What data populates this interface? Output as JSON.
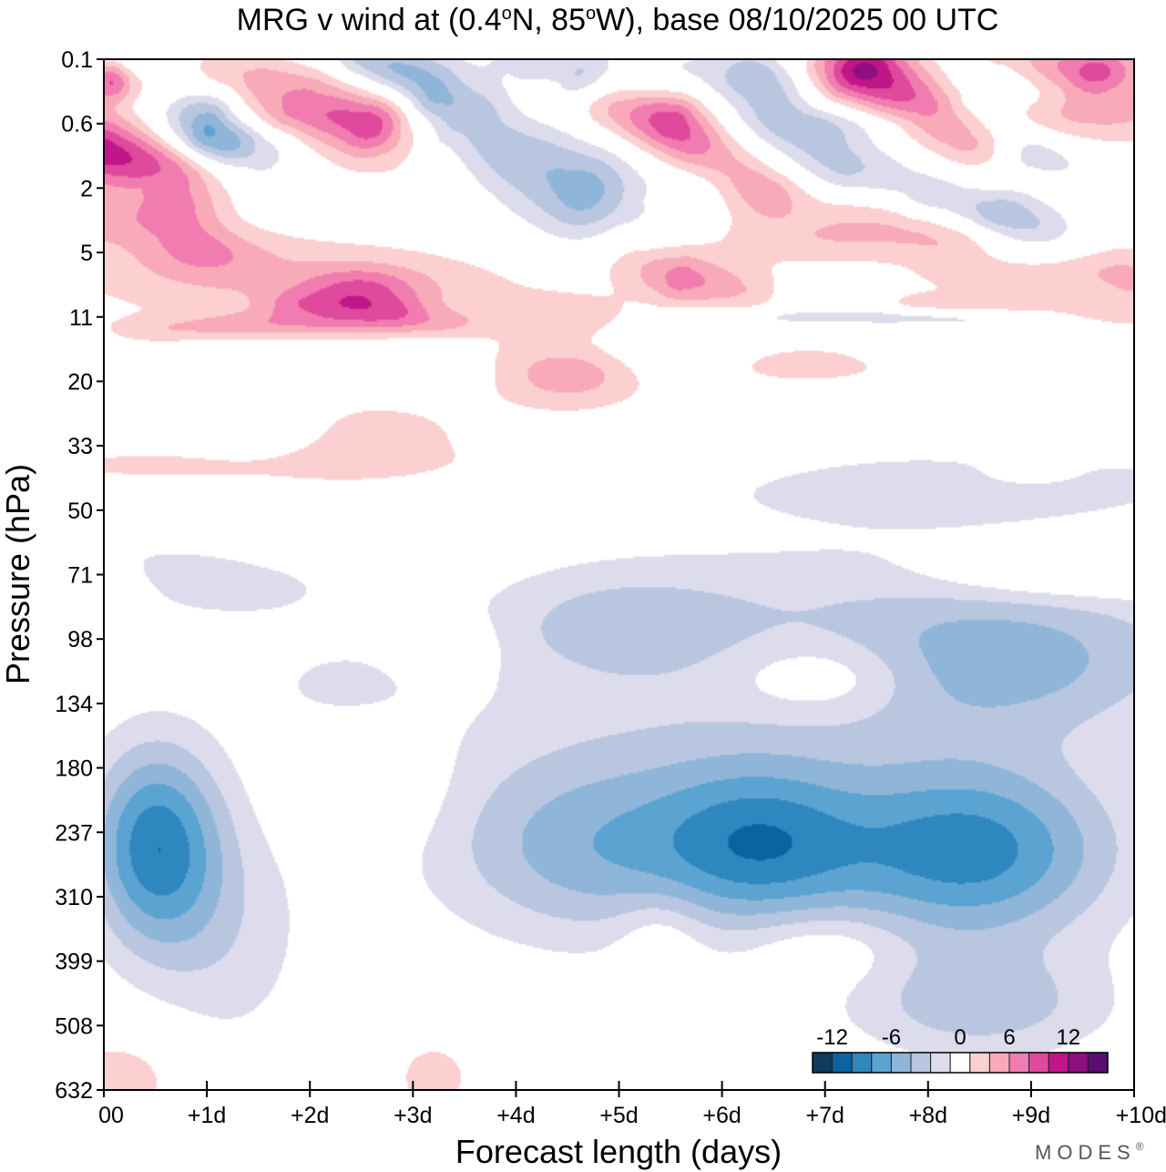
{
  "chart_data": {
    "type": "heatmap",
    "title": "MRG v wind at (0.4°N, 85°W),  base 08/10/2025  00 UTC",
    "title_parts": {
      "prefix": "MRG v wind at (0.4",
      "deg1": "o",
      "mid": "N, 85",
      "deg2": "o",
      "suffix": "W),  base 08/10/2025  00 UTC"
    },
    "xlabel": "Forecast length (days)",
    "ylabel": "Pressure (hPa)",
    "x_range": [
      0,
      10
    ],
    "x_ticks": [
      {
        "value": 0,
        "label": "00"
      },
      {
        "value": 1,
        "label": "+1d"
      },
      {
        "value": 2,
        "label": "+2d"
      },
      {
        "value": 3,
        "label": "+3d"
      },
      {
        "value": 4,
        "label": "+4d"
      },
      {
        "value": 5,
        "label": "+5d"
      },
      {
        "value": 6,
        "label": "+6d"
      },
      {
        "value": 7,
        "label": "+7d"
      },
      {
        "value": 8,
        "label": "+8d"
      },
      {
        "value": 9,
        "label": "+9d"
      },
      {
        "value": 10,
        "label": "+10d"
      }
    ],
    "y_ticks": [
      "0.1",
      "0.6",
      "2",
      "5",
      "11",
      "20",
      "33",
      "50",
      "71",
      "98",
      "134",
      "180",
      "237",
      "310",
      "399",
      "508",
      "632"
    ],
    "colorbar": {
      "levels": [
        -15,
        -12,
        -10,
        -8,
        -6,
        -4,
        -2,
        2,
        4,
        6,
        8,
        10,
        12,
        14,
        16
      ],
      "colors": [
        "#0f3b5c",
        "#0b64a0",
        "#2f87c0",
        "#5ba3d1",
        "#8fb5d9",
        "#b8c6e0",
        "#dcdcec",
        "#ffffff",
        "#fcd0d0",
        "#f8aab8",
        "#f07cb0",
        "#e04a9c",
        "#c0168a",
        "#8e0f80",
        "#5a0f70"
      ],
      "labels": [
        {
          "value": -12,
          "text": "-12"
        },
        {
          "value": -6,
          "text": "-6"
        },
        {
          "value": 0,
          "text": "0"
        },
        {
          "value": 6,
          "text": "6"
        },
        {
          "value": 12,
          "text": "12"
        }
      ]
    },
    "features": [
      {
        "day": 0.5,
        "level": 12.2,
        "sd": 0.45,
        "sl": 1.1,
        "amp": -11
      },
      {
        "day": 1.2,
        "level": 13.6,
        "sd": 0.6,
        "sl": 1.4,
        "amp": -3
      },
      {
        "day": 4.8,
        "level": 12.3,
        "sd": 1.1,
        "sl": 1.0,
        "amp": -7
      },
      {
        "day": 6.4,
        "level": 12.2,
        "sd": 0.7,
        "sl": 0.9,
        "amp": -8
      },
      {
        "day": 8.4,
        "level": 12.3,
        "sd": 1.0,
        "sl": 1.0,
        "amp": -11
      },
      {
        "day": 5.6,
        "level": 10.5,
        "sd": 2.0,
        "sl": 1.0,
        "amp": -2.5
      },
      {
        "day": 8.8,
        "level": 9.4,
        "sd": 1.3,
        "sl": 0.8,
        "amp": -6
      },
      {
        "day": 5.0,
        "level": 8.8,
        "sd": 0.9,
        "sl": 0.6,
        "amp": -4
      },
      {
        "day": 7.5,
        "level": 8.3,
        "sd": 2.2,
        "sl": 0.8,
        "amp": -2.5
      },
      {
        "day": 2.3,
        "level": 9.7,
        "sd": 0.5,
        "sl": 0.4,
        "amp": -2.3
      },
      {
        "day": 1.3,
        "level": 8.3,
        "sd": 0.9,
        "sl": 0.4,
        "amp": -2.3
      },
      {
        "day": 8.5,
        "level": 14.7,
        "sd": 0.9,
        "sl": 0.6,
        "amp": -5
      },
      {
        "day": 2.5,
        "level": 11.3,
        "sd": 0.5,
        "sl": 0.6,
        "amp": 3
      },
      {
        "day": 5.4,
        "level": 13.6,
        "sd": 0.3,
        "sl": 0.5,
        "amp": 2.5
      },
      {
        "day": 7.0,
        "level": 13.8,
        "sd": 0.5,
        "sl": 0.4,
        "amp": 2.5
      },
      {
        "day": 0.2,
        "level": 15.8,
        "sd": 0.5,
        "sl": 0.6,
        "amp": 3
      },
      {
        "day": 3.2,
        "level": 15.8,
        "sd": 0.4,
        "sl": 0.6,
        "amp": 2.5
      },
      {
        "day": 0.1,
        "level": 8.4,
        "sd": 0.2,
        "sl": 0.5,
        "amp": 2.5
      },
      {
        "day": 0.5,
        "level": 9.7,
        "sd": 0.1,
        "sl": 0.1,
        "amp": 2.5
      },
      {
        "day": 7.0,
        "level": 9.6,
        "sd": 0.6,
        "sl": 0.4,
        "amp": 3.5
      },
      {
        "day": 3.3,
        "level": 9.1,
        "sd": 0.3,
        "sl": 0.3,
        "amp": 3
      },
      {
        "day": 2.0,
        "level": 7.5,
        "sd": 0.8,
        "sl": 0.4,
        "amp": 2.5
      },
      {
        "day": 9.3,
        "level": 8.0,
        "sd": 1.0,
        "sl": 0.3,
        "amp": 3.5
      },
      {
        "day": 1.0,
        "level": 7.8,
        "sd": 1.2,
        "sl": 0.3,
        "amp": -2.3
      },
      {
        "day": 7.9,
        "level": 6.7,
        "sd": 1.8,
        "sl": 0.4,
        "amp": -2.3
      },
      {
        "day": 9.0,
        "level": 6.5,
        "sd": 1.2,
        "sl": 0.3,
        "amp": -2.3
      },
      {
        "day": 8.9,
        "level": 6.5,
        "sd": 0.6,
        "sl": 0.2,
        "amp": 2.5
      },
      {
        "day": 2.5,
        "level": 5.8,
        "sd": 0.7,
        "sl": 0.4,
        "amp": 3.5
      },
      {
        "day": 1.6,
        "level": 5.7,
        "sd": 0.5,
        "sl": 0.4,
        "amp": -2.5
      },
      {
        "day": 1.0,
        "level": 6.3,
        "sd": 2.0,
        "sl": 0.25,
        "amp": 2.5
      },
      {
        "day": 4.5,
        "level": 4.9,
        "sd": 0.6,
        "sl": 0.4,
        "amp": 5
      },
      {
        "day": 3.0,
        "level": 4.9,
        "sd": 0.5,
        "sl": 0.25,
        "amp": -2.3
      },
      {
        "day": 6.8,
        "level": 4.7,
        "sd": 1.1,
        "sl": 0.3,
        "amp": 3
      },
      {
        "day": 4.6,
        "level": 4.0,
        "sd": 0.5,
        "sl": 0.25,
        "amp": 3
      },
      {
        "day": 5.5,
        "level": 4.7,
        "sd": 0.4,
        "sl": 0.3,
        "amp": -2.3
      },
      {
        "day": 8.8,
        "level": 3.4,
        "sd": 0.7,
        "sl": 0.25,
        "amp": 3
      },
      {
        "day": 0.9,
        "level": 3.3,
        "sd": 1.2,
        "sl": 0.5,
        "amp": 3
      },
      {
        "day": 2.8,
        "level": 3.6,
        "sd": 1.2,
        "sl": 0.5,
        "amp": 3
      },
      {
        "day": 5.5,
        "level": 4.3,
        "sd": 0.7,
        "sl": 0.3,
        "amp": -2.3
      },
      {
        "day": 8.5,
        "level": 4.5,
        "sd": 0.8,
        "sl": 0.25,
        "amp": -2.3
      },
      {
        "day": 7.0,
        "level": 2.8,
        "sd": 0.8,
        "sl": 0.3,
        "amp": 3.5
      },
      {
        "day": 2.5,
        "level": 3.6,
        "sd": 0.4,
        "sl": 0.25,
        "amp": 5
      },
      {
        "day": 1.0,
        "level": 3.0,
        "sd": 0.4,
        "sl": 0.25,
        "amp": 3
      },
      {
        "day": 0.4,
        "level": 1.8,
        "sd": 0.6,
        "sl": 0.4,
        "amp": 2.8
      },
      {
        "day": 4.0,
        "level": 1.9,
        "sd": 1.0,
        "sl": 0.4,
        "amp": 2.5
      },
      {
        "day": 1.0,
        "level": 1.4,
        "sd": 0.3,
        "sl": 0.2,
        "amp": -2.3
      },
      {
        "day": 9.5,
        "level": 1.1,
        "sd": 0.9,
        "sl": 0.3,
        "amp": 2.5
      },
      {
        "day": 9.6,
        "level": 0.8,
        "sd": 0.5,
        "sl": 0.2,
        "amp": 2.5
      },
      {
        "day": 8.5,
        "level": 0.3,
        "sd": 0.9,
        "sl": 0.3,
        "amp": -2.5
      },
      {
        "day": 5.5,
        "level": 0.2,
        "sd": 0.6,
        "sl": 0.3,
        "amp": -2.3
      },
      {
        "day": 3.0,
        "level": 0.1,
        "sd": 0.4,
        "sl": 0.2,
        "amp": -2.3
      },
      {
        "day": 2.0,
        "level": 0.3,
        "sd": 0.8,
        "sl": 0.3,
        "amp": 2.5
      },
      {
        "day": 1.0,
        "level": 0.9,
        "sd": 0.9,
        "sl": 0.2,
        "amp": 2.5
      },
      {
        "day": 6.0,
        "level": 1.9,
        "sd": 0.6,
        "sl": 0.3,
        "amp": -2.3
      },
      {
        "day": 7.2,
        "level": 1.0,
        "sd": 0.6,
        "sl": 0.2,
        "amp": -2.3
      },
      {
        "day": 0.1,
        "level": 0.3,
        "sd": 0.1,
        "sl": 0.2,
        "amp": 4
      }
    ],
    "ridges": [
      {
        "pts": [
          [
            0.2,
            0.4,
            -4
          ],
          [
            1.0,
            1.0,
            -11
          ],
          [
            1.5,
            1.4,
            -4
          ]
        ],
        "sd": 0.25,
        "sl": 0.35
      },
      {
        "pts": [
          [
            2.0,
            0.3,
            -3
          ],
          [
            3.2,
            1.2,
            -6
          ],
          [
            4.6,
            2.0,
            -9
          ],
          [
            5.0,
            2.4,
            -3
          ]
        ],
        "sd": 0.4,
        "sl": 0.5
      },
      {
        "pts": [
          [
            2.5,
            0.0,
            -4
          ],
          [
            3.2,
            0.5,
            -6
          ],
          [
            3.6,
            0.7,
            -3
          ]
        ],
        "sd": 0.2,
        "sl": 0.3
      },
      {
        "pts": [
          [
            4.0,
            0.0,
            -2.3
          ],
          [
            4.6,
            0.3,
            -7
          ],
          [
            5.0,
            0.5,
            -2.5
          ]
        ],
        "sd": 0.25,
        "sl": 0.3
      },
      {
        "pts": [
          [
            6.4,
            0.3,
            -6
          ],
          [
            6.6,
            1.0,
            -4
          ],
          [
            7.2,
            1.7,
            -5
          ],
          [
            7.8,
            2.0,
            -3
          ]
        ],
        "sd": 0.3,
        "sl": 0.4
      },
      {
        "pts": [
          [
            8.4,
            0.8,
            -3
          ],
          [
            9.0,
            1.4,
            -5
          ],
          [
            9.4,
            1.6,
            -2.5
          ]
        ],
        "sd": 0.2,
        "sl": 0.25
      },
      {
        "pts": [
          [
            8.2,
            2.2,
            -3
          ],
          [
            8.7,
            2.4,
            -6
          ],
          [
            9.4,
            2.8,
            -3
          ]
        ],
        "sd": 0.3,
        "sl": 0.25
      },
      {
        "pts": [
          [
            0.0,
            0.4,
            8
          ],
          [
            0.5,
            0.5,
            6
          ]
        ],
        "sd": 0.25,
        "sl": 0.25
      },
      {
        "pts": [
          [
            0.0,
            1.4,
            10
          ],
          [
            0.6,
            1.6,
            6
          ],
          [
            0.7,
            2.1,
            4
          ]
        ],
        "sd": 0.3,
        "sl": 0.35
      },
      {
        "pts": [
          [
            0.0,
            2.5,
            4
          ],
          [
            0.8,
            2.6,
            3
          ]
        ],
        "sd": 0.3,
        "sl": 0.3
      },
      {
        "pts": [
          [
            1.3,
            0.2,
            3
          ],
          [
            2.0,
            0.7,
            8
          ],
          [
            2.6,
            1.0,
            13
          ],
          [
            3.2,
            1.4,
            4
          ]
        ],
        "sd": 0.35,
        "sl": 0.4
      },
      {
        "pts": [
          [
            4.5,
            0.4,
            4
          ],
          [
            5.5,
            1.0,
            10
          ],
          [
            5.9,
            1.5,
            6
          ],
          [
            6.4,
            2.0,
            4
          ]
        ],
        "sd": 0.25,
        "sl": 0.35
      },
      {
        "pts": [
          [
            6.8,
            0.0,
            4
          ],
          [
            7.4,
            0.2,
            14
          ],
          [
            8.0,
            0.7,
            8
          ],
          [
            8.4,
            1.2,
            5
          ]
        ],
        "sd": 0.35,
        "sl": 0.35
      },
      {
        "pts": [
          [
            8.8,
            0.0,
            4
          ],
          [
            9.6,
            0.2,
            10
          ],
          [
            10.0,
            0.4,
            4
          ]
        ],
        "sd": 0.35,
        "sl": 0.3
      },
      {
        "pts": [
          [
            6.4,
            2.0,
            3
          ],
          [
            7.6,
            2.4,
            3.5
          ],
          [
            8.2,
            2.8,
            3
          ]
        ],
        "sd": 0.3,
        "sl": 0.3
      },
      {
        "pts": [
          [
            9.6,
            3.0,
            3
          ],
          [
            10.0,
            3.4,
            4
          ]
        ],
        "sd": 0.3,
        "sl": 0.35
      },
      {
        "pts": [
          [
            5.2,
            3.2,
            4
          ],
          [
            5.6,
            3.4,
            7
          ],
          [
            6.2,
            3.6,
            4
          ]
        ],
        "sd": 0.25,
        "sl": 0.3
      },
      {
        "pts": [
          [
            0.5,
            4.2,
            3
          ],
          [
            1.8,
            4.1,
            4
          ],
          [
            3.2,
            4.1,
            3
          ]
        ],
        "sd": 0.35,
        "sl": 0.15
      },
      {
        "pts": [
          [
            1.9,
            3.8,
            3
          ],
          [
            2.8,
            3.9,
            3
          ]
        ],
        "sd": 0.25,
        "sl": 0.15
      },
      {
        "pts": [
          [
            8.0,
            3.8,
            3
          ],
          [
            9.4,
            3.9,
            3
          ],
          [
            10.0,
            4.0,
            2.5
          ]
        ],
        "sd": 0.3,
        "sl": 0.12
      },
      {
        "pts": [
          [
            6.4,
            4.0,
            -2.3
          ],
          [
            7.5,
            4.0,
            -3
          ],
          [
            9.0,
            4.0,
            -2.3
          ]
        ],
        "sd": 0.3,
        "sl": 0.1
      }
    ]
  },
  "branding": {
    "label": "MODES",
    "mark": "®"
  }
}
